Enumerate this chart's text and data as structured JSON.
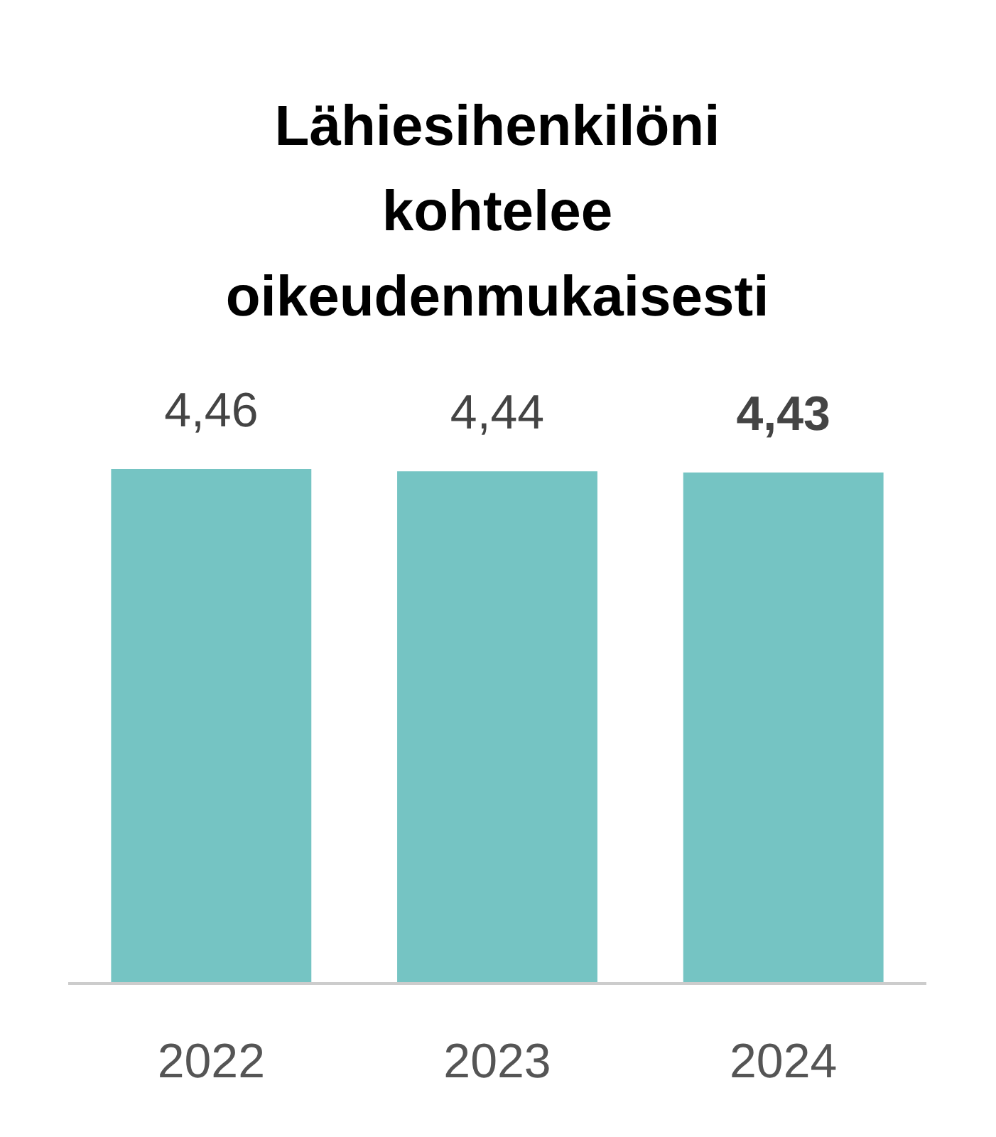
{
  "chart_data": {
    "type": "bar",
    "title": "Lähiesihenkilöni kohtelee oikeudenmukaisesti",
    "categories": [
      "2022",
      "2023",
      "2024"
    ],
    "values": [
      4.46,
      4.44,
      4.43
    ],
    "value_labels": [
      "4,46",
      "4,44",
      "4,43"
    ],
    "color": "#75c4c3"
  }
}
